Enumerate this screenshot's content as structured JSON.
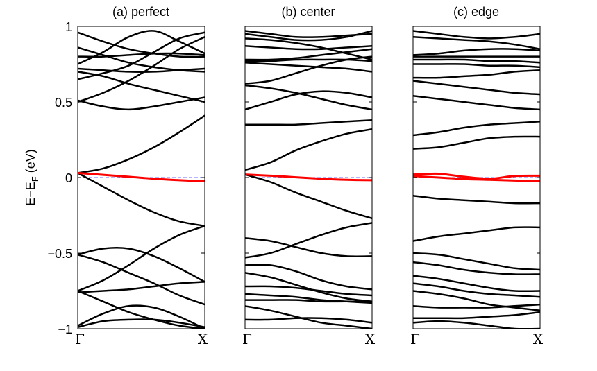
{
  "chart_data": {
    "type": "line",
    "ylabel_main": "E−E",
    "ylabel_sub": "F",
    "ylabel_unit": " (eV)",
    "ylim": [
      -1,
      1
    ],
    "yticks": [
      1,
      0.5,
      0,
      -0.5,
      -1
    ],
    "ytick_labels": [
      "1",
      "0.5",
      "0",
      "−0.5",
      "−1"
    ],
    "xticks": [
      "Γ",
      "X"
    ],
    "fermi_level": 0,
    "colors": {
      "bands": "#000000",
      "highlight": "#ff0000",
      "fermi": "#6b6bff"
    },
    "panels": [
      {
        "title": "(a) perfect",
        "highlight": [
          0.03,
          0.018,
          0.005,
          -0.008,
          -0.018,
          -0.025
        ],
        "bands": [
          [
            0.96,
            0.9,
            0.85,
            0.82,
            0.8,
            0.8
          ],
          [
            0.86,
            0.81,
            0.76,
            0.73,
            0.71,
            0.7
          ],
          [
            0.8,
            0.8,
            0.81,
            0.82,
            0.82,
            0.81
          ],
          [
            0.75,
            0.83,
            0.93,
            0.97,
            0.9,
            0.82
          ],
          [
            0.72,
            0.71,
            0.7,
            0.7,
            0.71,
            0.72
          ],
          [
            0.7,
            0.67,
            0.62,
            0.58,
            0.54,
            0.5
          ],
          [
            0.65,
            0.69,
            0.74,
            0.83,
            0.92,
            0.96
          ],
          [
            0.51,
            0.47,
            0.45,
            0.47,
            0.5,
            0.53
          ],
          [
            0.5,
            0.56,
            0.64,
            0.74,
            0.85,
            0.93
          ],
          [
            0.03,
            0.06,
            0.12,
            0.2,
            0.3,
            0.41
          ],
          [
            0.03,
            -0.06,
            -0.15,
            -0.23,
            -0.29,
            -0.32
          ],
          [
            -0.51,
            -0.47,
            -0.47,
            -0.52,
            -0.6,
            -0.69
          ],
          [
            -0.51,
            -0.56,
            -0.63,
            -0.7,
            -0.78,
            -0.84
          ],
          [
            -0.75,
            -0.68,
            -0.58,
            -0.47,
            -0.38,
            -0.32
          ],
          [
            -0.75,
            -0.82,
            -0.89,
            -0.94,
            -0.98,
            -1.0
          ],
          [
            -0.76,
            -0.75,
            -0.74,
            -0.72,
            -0.7,
            -0.69
          ],
          [
            -0.99,
            -0.95,
            -0.94,
            -0.94,
            -0.96,
            -0.99
          ],
          [
            -0.98,
            -0.9,
            -0.85,
            -0.86,
            -0.92,
            -1.0
          ]
        ]
      },
      {
        "title": "(b) center",
        "highlight": [
          0.02,
          0.012,
          0.002,
          -0.008,
          -0.015,
          -0.018
        ],
        "bands": [
          [
            0.97,
            0.95,
            0.93,
            0.93,
            0.94,
            0.95
          ],
          [
            0.95,
            0.93,
            0.91,
            0.91,
            0.93,
            0.97
          ],
          [
            0.92,
            0.91,
            0.89,
            0.86,
            0.82,
            0.78
          ],
          [
            0.87,
            0.86,
            0.85,
            0.85,
            0.86,
            0.87
          ],
          [
            0.78,
            0.78,
            0.79,
            0.81,
            0.83,
            0.85
          ],
          [
            0.77,
            0.77,
            0.78,
            0.78,
            0.78,
            0.77
          ],
          [
            0.76,
            0.75,
            0.74,
            0.73,
            0.72,
            0.7
          ],
          [
            0.62,
            0.64,
            0.69,
            0.74,
            0.78,
            0.8
          ],
          [
            0.61,
            0.59,
            0.56,
            0.52,
            0.48,
            0.45
          ],
          [
            0.45,
            0.5,
            0.55,
            0.57,
            0.56,
            0.53
          ],
          [
            0.35,
            0.35,
            0.35,
            0.36,
            0.37,
            0.38
          ],
          [
            0.05,
            0.1,
            0.18,
            0.24,
            0.29,
            0.32
          ],
          [
            0.02,
            -0.03,
            -0.1,
            -0.16,
            -0.22,
            -0.27
          ],
          [
            -0.4,
            -0.42,
            -0.46,
            -0.5,
            -0.52,
            -0.52
          ],
          [
            -0.53,
            -0.5,
            -0.44,
            -0.38,
            -0.33,
            -0.3
          ],
          [
            -0.58,
            -0.58,
            -0.62,
            -0.68,
            -0.72,
            -0.74
          ],
          [
            -0.63,
            -0.66,
            -0.71,
            -0.76,
            -0.8,
            -0.82
          ],
          [
            -0.72,
            -0.72,
            -0.73,
            -0.75,
            -0.77,
            -0.78
          ],
          [
            -0.77,
            -0.78,
            -0.79,
            -0.81,
            -0.82,
            -0.83
          ],
          [
            -0.81,
            -0.81,
            -0.81,
            -0.82,
            -0.82,
            -0.82
          ],
          [
            -0.85,
            -0.88,
            -0.92,
            -0.96,
            -0.98,
            -1.0
          ],
          [
            -0.94,
            -0.94,
            -0.93,
            -0.93,
            -0.94,
            -0.96
          ]
        ]
      },
      {
        "title": "(c) edge",
        "highlight": [
          0.02,
          0.025,
          0.005,
          -0.008,
          0.01,
          0.012
        ],
        "highlight2": [
          0.01,
          0.0,
          -0.01,
          -0.015,
          -0.02,
          -0.025
        ],
        "bands": [
          [
            0.97,
            0.95,
            0.93,
            0.92,
            0.93,
            0.95
          ],
          [
            0.93,
            0.92,
            0.91,
            0.9,
            0.88,
            0.85
          ],
          [
            0.81,
            0.82,
            0.84,
            0.85,
            0.85,
            0.84
          ],
          [
            0.8,
            0.8,
            0.8,
            0.8,
            0.8,
            0.8
          ],
          [
            0.78,
            0.78,
            0.78,
            0.77,
            0.77,
            0.76
          ],
          [
            0.75,
            0.75,
            0.75,
            0.74,
            0.74,
            0.73
          ],
          [
            0.66,
            0.66,
            0.67,
            0.68,
            0.7,
            0.71
          ],
          [
            0.64,
            0.62,
            0.6,
            0.58,
            0.56,
            0.55
          ],
          [
            0.54,
            0.52,
            0.5,
            0.48,
            0.46,
            0.45
          ],
          [
            0.28,
            0.3,
            0.33,
            0.35,
            0.36,
            0.37
          ],
          [
            0.19,
            0.2,
            0.23,
            0.26,
            0.27,
            0.27
          ],
          [
            -0.12,
            -0.14,
            -0.15,
            -0.16,
            -0.17,
            -0.17
          ],
          [
            -0.42,
            -0.39,
            -0.37,
            -0.35,
            -0.33,
            -0.33
          ],
          [
            -0.5,
            -0.51,
            -0.54,
            -0.57,
            -0.6,
            -0.61
          ],
          [
            -0.56,
            -0.58,
            -0.61,
            -0.63,
            -0.64,
            -0.64
          ],
          [
            -0.65,
            -0.67,
            -0.7,
            -0.73,
            -0.75,
            -0.75
          ],
          [
            -0.7,
            -0.72,
            -0.75,
            -0.77,
            -0.78,
            -0.79
          ],
          [
            -0.75,
            -0.77,
            -0.8,
            -0.84,
            -0.86,
            -0.88
          ],
          [
            -0.85,
            -0.86,
            -0.86,
            -0.86,
            -0.85,
            -0.84
          ],
          [
            -0.93,
            -0.93,
            -0.93,
            -0.92,
            -0.91,
            -0.89
          ],
          [
            -0.96,
            -0.95,
            -0.96,
            -0.98,
            -1.0,
            -1.0
          ]
        ]
      }
    ]
  }
}
